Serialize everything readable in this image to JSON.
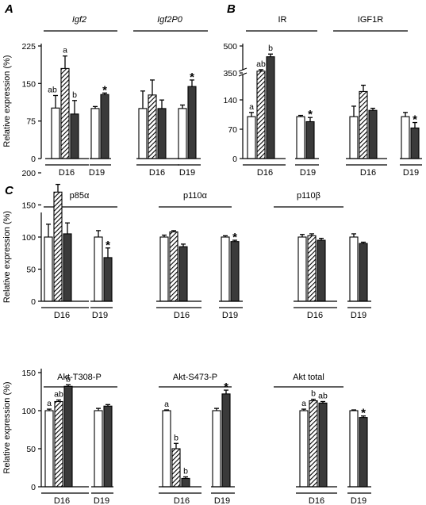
{
  "figure": {
    "panels": {
      "A": "A",
      "B": "B",
      "C": "C"
    }
  },
  "chart_data": [
    {
      "id": "A",
      "type": "bar",
      "panel_letter": "A",
      "ylabel": "Relative expression (%)",
      "yticks": [
        "0",
        "75",
        "150",
        "225"
      ],
      "ylim": [
        0,
        225
      ],
      "legend": "none",
      "error_bars": true,
      "groups": [
        {
          "title": "Igf2",
          "title_italic": true,
          "subgroups": [
            {
              "label": "D16",
              "bars": [
                {
                  "fill": "white",
                  "value": 101,
                  "error": 25,
                  "annotation": "ab"
                },
                {
                  "fill": "hatched",
                  "value": 180,
                  "error": 25,
                  "annotation": "a"
                },
                {
                  "fill": "dark",
                  "value": 89,
                  "error": 27,
                  "annotation": "b"
                }
              ]
            },
            {
              "label": "D19",
              "bars": [
                {
                  "fill": "white",
                  "value": 100,
                  "error": 4,
                  "annotation": ""
                },
                {
                  "fill": "dark",
                  "value": 128,
                  "error": 3,
                  "annotation": "*"
                }
              ]
            }
          ]
        },
        {
          "title": "Igf2P0",
          "title_italic": true,
          "subgroups": [
            {
              "label": "D16",
              "bars": [
                {
                  "fill": "white",
                  "value": 100,
                  "error": 35,
                  "annotation": ""
                },
                {
                  "fill": "hatched",
                  "value": 127,
                  "error": 30,
                  "annotation": ""
                },
                {
                  "fill": "dark",
                  "value": 100,
                  "error": 17,
                  "annotation": ""
                }
              ]
            },
            {
              "label": "D19",
              "bars": [
                {
                  "fill": "white",
                  "value": 100,
                  "error": 7,
                  "annotation": ""
                },
                {
                  "fill": "dark",
                  "value": 144,
                  "error": 13,
                  "annotation": "*"
                }
              ]
            }
          ]
        }
      ]
    },
    {
      "id": "B",
      "type": "bar",
      "panel_letter": "B",
      "ylabel": "",
      "yticks": [
        "0",
        "70",
        "140",
        "350",
        "500"
      ],
      "axis_break": {
        "lower_max": 210,
        "upper_range": [
          330,
          500
        ]
      },
      "legend": "none",
      "error_bars": true,
      "groups": [
        {
          "title": "IR",
          "title_italic": false,
          "subgroups": [
            {
              "label": "D16",
              "bars": [
                {
                  "fill": "white",
                  "value": 100,
                  "error": 10,
                  "annotation": "a"
                },
                {
                  "fill": "hatched",
                  "value": 360,
                  "error": 8,
                  "annotation": "ab"
                },
                {
                  "fill": "dark",
                  "value": 440,
                  "error": 15,
                  "annotation": "b"
                }
              ]
            },
            {
              "label": "D19",
              "bars": [
                {
                  "fill": "white",
                  "value": 100,
                  "error": 3,
                  "annotation": ""
                },
                {
                  "fill": "dark",
                  "value": 88,
                  "error": 10,
                  "annotation": "*"
                }
              ]
            }
          ]
        },
        {
          "title": "IGF1R",
          "title_italic": false,
          "subgroups": [
            {
              "label": "D16",
              "bars": [
                {
                  "fill": "white",
                  "value": 100,
                  "error": 25,
                  "annotation": ""
                },
                {
                  "fill": "hatched",
                  "value": 160,
                  "error": 15,
                  "annotation": ""
                },
                {
                  "fill": "dark",
                  "value": 115,
                  "error": 5,
                  "annotation": ""
                }
              ]
            },
            {
              "label": "D19",
              "bars": [
                {
                  "fill": "white",
                  "value": 100,
                  "error": 10,
                  "annotation": ""
                },
                {
                  "fill": "dark",
                  "value": 73,
                  "error": 13,
                  "annotation": "*"
                }
              ]
            }
          ]
        }
      ]
    },
    {
      "id": "C1",
      "type": "bar",
      "panel_letter": "C",
      "ylabel": "Relative expression (%)",
      "yticks": [
        "0",
        "50",
        "100",
        "150",
        "200"
      ],
      "ylim": [
        0,
        200
      ],
      "legend": "none",
      "error_bars": true,
      "groups": [
        {
          "title": "p85α",
          "title_italic": false,
          "subgroups": [
            {
              "label": "D16",
              "bars": [
                {
                  "fill": "white",
                  "value": 100,
                  "error": 20,
                  "annotation": ""
                },
                {
                  "fill": "hatched",
                  "value": 170,
                  "error": 12,
                  "annotation": ""
                },
                {
                  "fill": "dark",
                  "value": 105,
                  "error": 17,
                  "annotation": ""
                }
              ]
            },
            {
              "label": "D19",
              "bars": [
                {
                  "fill": "white",
                  "value": 100,
                  "error": 10,
                  "annotation": ""
                },
                {
                  "fill": "dark",
                  "value": 68,
                  "error": 15,
                  "annotation": "*"
                }
              ]
            }
          ]
        },
        {
          "title": "p110α",
          "title_italic": false,
          "subgroups": [
            {
              "label": "D16",
              "bars": [
                {
                  "fill": "white",
                  "value": 100,
                  "error": 3,
                  "annotation": ""
                },
                {
                  "fill": "hatched",
                  "value": 108,
                  "error": 2,
                  "annotation": ""
                },
                {
                  "fill": "dark",
                  "value": 85,
                  "error": 4,
                  "annotation": ""
                }
              ]
            },
            {
              "label": "D19",
              "bars": [
                {
                  "fill": "white",
                  "value": 100,
                  "error": 2,
                  "annotation": ""
                },
                {
                  "fill": "dark",
                  "value": 93,
                  "error": 2,
                  "annotation": "*"
                }
              ]
            }
          ]
        },
        {
          "title": "p110β",
          "title_italic": false,
          "subgroups": [
            {
              "label": "D16",
              "bars": [
                {
                  "fill": "white",
                  "value": 100,
                  "error": 4,
                  "annotation": ""
                },
                {
                  "fill": "hatched",
                  "value": 102,
                  "error": 3,
                  "annotation": ""
                },
                {
                  "fill": "dark",
                  "value": 95,
                  "error": 3,
                  "annotation": ""
                }
              ]
            },
            {
              "label": "D19",
              "bars": [
                {
                  "fill": "white",
                  "value": 100,
                  "error": 5,
                  "annotation": ""
                },
                {
                  "fill": "dark",
                  "value": 90,
                  "error": 2,
                  "annotation": ""
                }
              ]
            }
          ]
        }
      ]
    },
    {
      "id": "C2",
      "type": "bar",
      "panel_letter": "",
      "ylabel": "Relative expression (%)",
      "yticks": [
        "0",
        "50",
        "100",
        "150"
      ],
      "ylim": [
        0,
        150
      ],
      "legend": "none",
      "error_bars": true,
      "groups": [
        {
          "title": "Akt-T308-P",
          "title_italic": false,
          "subgroups": [
            {
              "label": "D16",
              "bars": [
                {
                  "fill": "white",
                  "value": 100,
                  "error": 2,
                  "annotation": "a"
                },
                {
                  "fill": "hatched",
                  "value": 112,
                  "error": 2,
                  "annotation": "ab"
                },
                {
                  "fill": "dark",
                  "value": 132,
                  "error": 2,
                  "annotation": "b"
                }
              ]
            },
            {
              "label": "D19",
              "bars": [
                {
                  "fill": "white",
                  "value": 100,
                  "error": 3,
                  "annotation": ""
                },
                {
                  "fill": "dark",
                  "value": 106,
                  "error": 2,
                  "annotation": ""
                }
              ]
            }
          ]
        },
        {
          "title": "Akt-S473-P",
          "title_italic": false,
          "subgroups": [
            {
              "label": "D16",
              "bars": [
                {
                  "fill": "white",
                  "value": 100,
                  "error": 1,
                  "annotation": "a"
                },
                {
                  "fill": "hatched",
                  "value": 50,
                  "error": 7,
                  "annotation": "b"
                },
                {
                  "fill": "dark",
                  "value": 11,
                  "error": 2,
                  "annotation": "b"
                }
              ]
            },
            {
              "label": "D19",
              "bars": [
                {
                  "fill": "white",
                  "value": 100,
                  "error": 3,
                  "annotation": ""
                },
                {
                  "fill": "dark",
                  "value": 122,
                  "error": 5,
                  "annotation": "*"
                }
              ]
            }
          ]
        },
        {
          "title": "Akt total",
          "title_italic": false,
          "subgroups": [
            {
              "label": "D16",
              "bars": [
                {
                  "fill": "white",
                  "value": 100,
                  "error": 2,
                  "annotation": "a"
                },
                {
                  "fill": "hatched",
                  "value": 113,
                  "error": 2,
                  "annotation": "b"
                },
                {
                  "fill": "dark",
                  "value": 110,
                  "error": 2,
                  "annotation": "ab"
                }
              ]
            },
            {
              "label": "D19",
              "bars": [
                {
                  "fill": "white",
                  "value": 100,
                  "error": 1,
                  "annotation": ""
                },
                {
                  "fill": "dark",
                  "value": 91,
                  "error": 2,
                  "annotation": "*"
                }
              ]
            }
          ]
        }
      ]
    }
  ]
}
